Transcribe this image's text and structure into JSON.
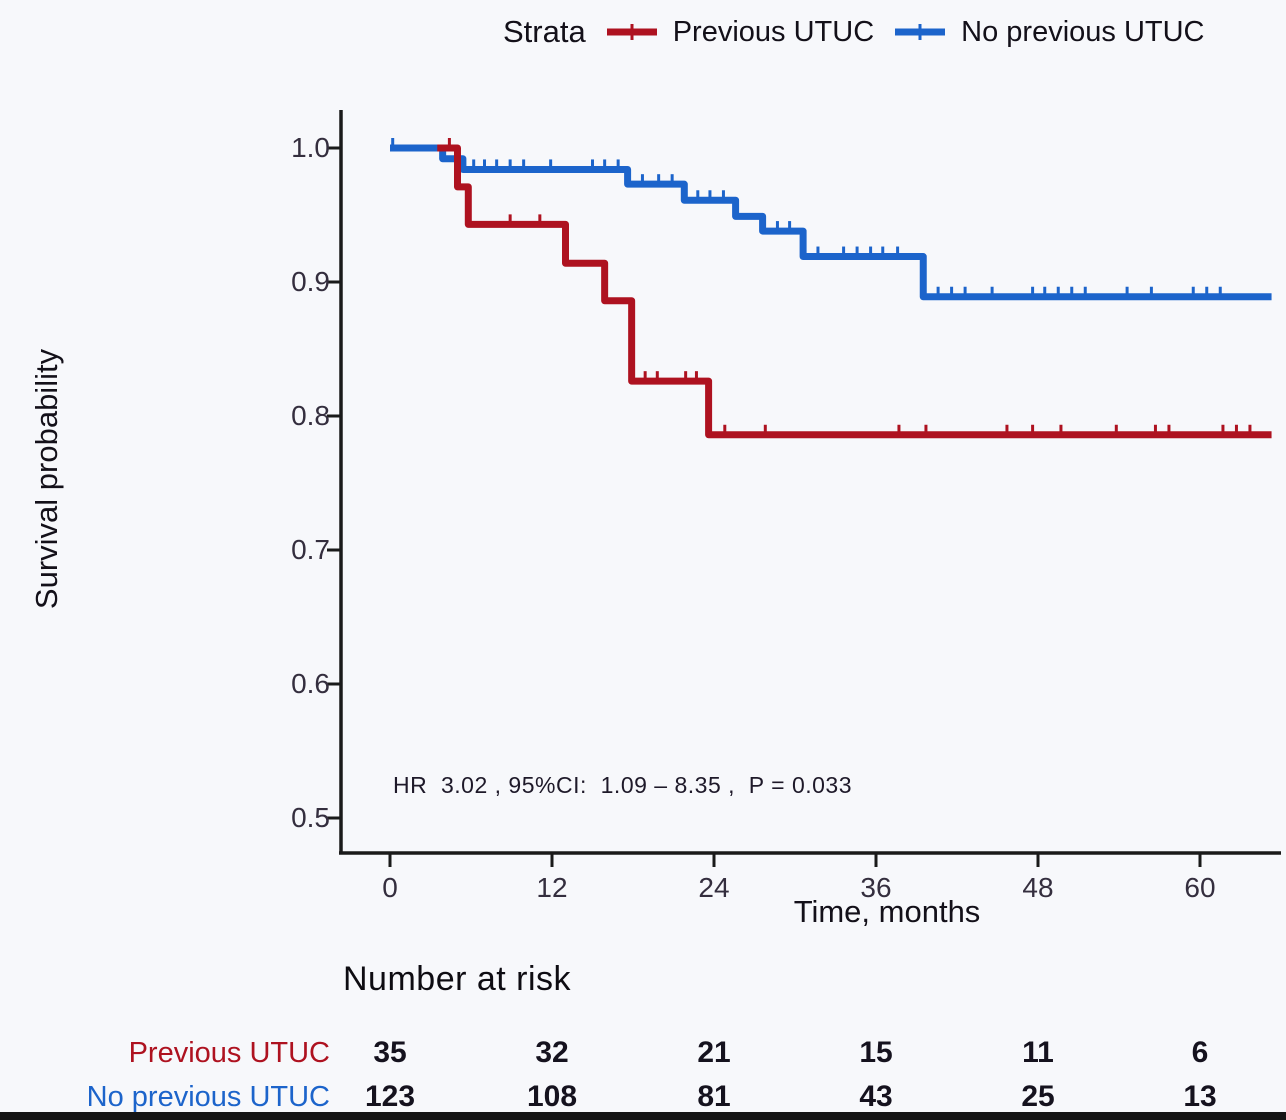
{
  "chart_data": {
    "type": "line",
    "subtype": "kaplan_meier_step",
    "legend_title": "Strata",
    "annotation": "HR  3.02 , 95%CI:  1.09 – 8.35 ,  P = 0.033",
    "x_axis": {
      "label": "Time, months",
      "ticks": [
        {
          "label": "0",
          "value": 0
        },
        {
          "label": "12",
          "value": 12
        },
        {
          "label": "24",
          "value": 24
        },
        {
          "label": "36",
          "value": 36
        },
        {
          "label": "48",
          "value": 48
        },
        {
          "label": "60",
          "value": 60
        }
      ],
      "range": [
        0,
        65.3
      ],
      "curve_end": 65.3
    },
    "y_axis": {
      "label": "Survival probability",
      "ticks": [
        {
          "label": "1.0",
          "value": 1.0
        },
        {
          "label": "0.9",
          "value": 0.9
        },
        {
          "label": "0.8",
          "value": 0.8
        },
        {
          "label": "0.7",
          "value": 0.7
        },
        {
          "label": "0.6",
          "value": 0.6
        },
        {
          "label": "0.5",
          "value": 0.5
        }
      ],
      "range": [
        0.475,
        1.0
      ]
    },
    "grid": false,
    "legend_position": "top",
    "series": [
      {
        "name": "No previous UTUC",
        "color": "#1c64cb",
        "draw_start_t": 0,
        "steps": [
          [
            0,
            1.0
          ],
          [
            3.9,
            0.992
          ],
          [
            5.4,
            0.984
          ],
          [
            17.6,
            0.973
          ],
          [
            21.8,
            0.961
          ],
          [
            25.6,
            0.949
          ],
          [
            27.6,
            0.938
          ],
          [
            30.6,
            0.919
          ],
          [
            39.5,
            0.889
          ]
        ],
        "censor_marks": [
          [
            0.2,
            1.0
          ],
          [
            6.2,
            0.984
          ],
          [
            7.0,
            0.984
          ],
          [
            7.9,
            0.984
          ],
          [
            8.9,
            0.984
          ],
          [
            9.9,
            0.984
          ],
          [
            11.9,
            0.984
          ],
          [
            15.0,
            0.984
          ],
          [
            15.9,
            0.984
          ],
          [
            16.9,
            0.984
          ],
          [
            18.7,
            0.973
          ],
          [
            19.9,
            0.973
          ],
          [
            20.9,
            0.973
          ],
          [
            22.8,
            0.961
          ],
          [
            23.7,
            0.961
          ],
          [
            24.7,
            0.961
          ],
          [
            28.7,
            0.938
          ],
          [
            29.6,
            0.938
          ],
          [
            31.7,
            0.919
          ],
          [
            33.6,
            0.919
          ],
          [
            34.6,
            0.919
          ],
          [
            35.6,
            0.919
          ],
          [
            36.5,
            0.919
          ],
          [
            37.6,
            0.919
          ],
          [
            40.6,
            0.889
          ],
          [
            41.6,
            0.889
          ],
          [
            42.6,
            0.889
          ],
          [
            44.6,
            0.889
          ],
          [
            47.6,
            0.889
          ],
          [
            48.5,
            0.889
          ],
          [
            49.5,
            0.889
          ],
          [
            50.5,
            0.889
          ],
          [
            51.5,
            0.889
          ],
          [
            54.6,
            0.889
          ],
          [
            56.4,
            0.889
          ],
          [
            59.5,
            0.889
          ],
          [
            60.5,
            0.889
          ],
          [
            61.5,
            0.889
          ]
        ]
      },
      {
        "name": "Previous UTUC",
        "color": "#ae1220",
        "draw_start_t": 3.5,
        "steps": [
          [
            3.5,
            1.0
          ],
          [
            5.0,
            0.971
          ],
          [
            5.8,
            0.943
          ],
          [
            13.0,
            0.914
          ],
          [
            15.9,
            0.886
          ],
          [
            17.9,
            0.826
          ],
          [
            23.6,
            0.786
          ]
        ],
        "censor_marks": [
          [
            4.4,
            1.0
          ],
          [
            8.9,
            0.943
          ],
          [
            11.1,
            0.943
          ],
          [
            18.9,
            0.826
          ],
          [
            19.8,
            0.826
          ],
          [
            21.9,
            0.826
          ],
          [
            22.7,
            0.826
          ],
          [
            24.8,
            0.786
          ],
          [
            27.8,
            0.786
          ],
          [
            37.7,
            0.786
          ],
          [
            39.7,
            0.786
          ],
          [
            45.7,
            0.786
          ],
          [
            47.6,
            0.786
          ],
          [
            49.7,
            0.786
          ],
          [
            53.8,
            0.786
          ],
          [
            56.7,
            0.786
          ],
          [
            57.7,
            0.786
          ],
          [
            61.7,
            0.786
          ],
          [
            62.7,
            0.786
          ],
          [
            63.7,
            0.786
          ]
        ]
      }
    ],
    "risk_table": {
      "title": "Number at risk",
      "times": [
        0,
        12,
        24,
        36,
        48,
        60
      ],
      "rows": [
        {
          "label": "Previous UTUC",
          "color": "#ae1220",
          "values": [
            35,
            32,
            21,
            15,
            11,
            6
          ]
        },
        {
          "label": "No previous UTUC",
          "color": "#1c64cb",
          "values": [
            123,
            108,
            81,
            43,
            25,
            13
          ]
        }
      ]
    },
    "axis_color": "#1a1a1a"
  },
  "legend": {
    "title": "Strata",
    "items": [
      {
        "label": "Previous UTUC"
      },
      {
        "label": "No previous UTUC"
      }
    ]
  }
}
